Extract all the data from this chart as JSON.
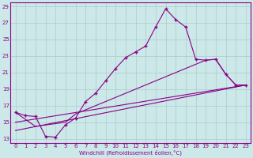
{
  "xlabel": "Windchill (Refroidissement éolien,°C)",
  "bg_color": "#cce8e8",
  "line_color": "#880088",
  "grid_color": "#aacccc",
  "xlim": [
    -0.5,
    23.5
  ],
  "ylim": [
    12.5,
    29.5
  ],
  "xticks": [
    0,
    1,
    2,
    3,
    4,
    5,
    6,
    7,
    8,
    9,
    10,
    11,
    12,
    13,
    14,
    15,
    16,
    17,
    18,
    19,
    20,
    21,
    22,
    23
  ],
  "yticks": [
    13,
    15,
    17,
    19,
    21,
    23,
    25,
    27,
    29
  ],
  "line1_x": [
    0,
    1,
    2,
    3,
    4,
    5,
    6,
    7,
    8,
    9,
    10,
    11,
    12,
    13,
    14,
    15,
    16,
    17,
    18,
    19,
    20,
    21,
    22,
    23
  ],
  "line1_y": [
    16.2,
    15.8,
    15.7,
    13.3,
    13.2,
    14.7,
    15.5,
    17.5,
    18.5,
    20.0,
    21.5,
    22.8,
    23.5,
    24.2,
    26.5,
    28.7,
    27.4,
    26.5,
    22.6,
    22.5,
    22.6,
    20.8,
    19.5,
    19.5
  ],
  "line2_x": [
    0,
    2,
    5,
    6,
    18,
    19,
    20,
    21,
    22,
    23
  ],
  "line2_y": [
    16.2,
    14.5,
    15.0,
    16.0,
    22.0,
    22.5,
    22.6,
    20.8,
    19.5,
    19.5
  ],
  "line3_x": [
    0,
    23
  ],
  "line3_y": [
    15.0,
    19.5
  ],
  "line4_x": [
    0,
    23
  ],
  "line4_y": [
    14.0,
    19.5
  ]
}
